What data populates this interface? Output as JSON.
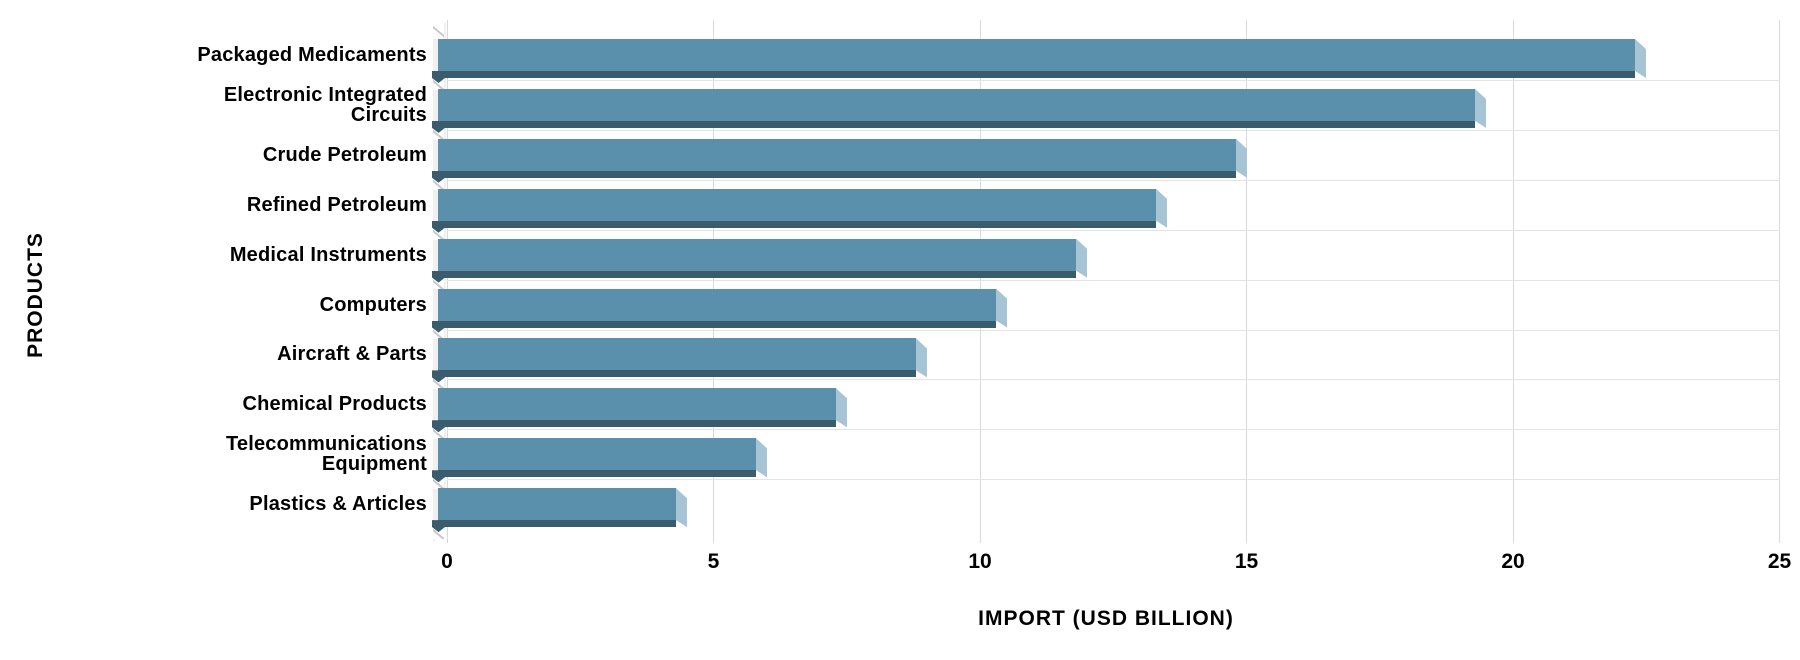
{
  "chart_data": {
    "type": "bar",
    "orientation": "horizontal",
    "style": "3d-bevel",
    "title": "",
    "xlabel": "IMPORT (USD BILLION)",
    "ylabel": "PRODUCTS",
    "xlim": [
      0,
      25
    ],
    "x_ticks": [
      0,
      5,
      10,
      15,
      20,
      25
    ],
    "x_tick_labels": [
      "0",
      "5",
      "10",
      "15",
      "20",
      "25"
    ],
    "grid": "vertical-gridlines-on, light row separators between categories",
    "legend": "none",
    "categories": [
      "Packaged Medicaments",
      "Electronic Integrated Circuits",
      "Crude Petroleum",
      "Refined Petroleum",
      "Medical Instruments",
      "Computers",
      "Aircraft & Parts",
      "Chemical Products",
      "Telecommunications Equipment",
      "Plastics & Articles"
    ],
    "category_display_lines": [
      [
        "Packaged Medicaments"
      ],
      [
        "Electronic Integrated",
        "Circuits"
      ],
      [
        "Crude Petroleum"
      ],
      [
        "Refined Petroleum"
      ],
      [
        "Medical Instruments"
      ],
      [
        "Computers"
      ],
      [
        "Aircraft & Parts"
      ],
      [
        "Chemical Products"
      ],
      [
        "Telecommunications",
        "Equipment"
      ],
      [
        "Plastics & Articles"
      ]
    ],
    "values": [
      22.5,
      19.5,
      15,
      13.5,
      12,
      10.5,
      9,
      7.5,
      6,
      4.5
    ],
    "series_name": "Import (USD Billion)",
    "colors": {
      "bar_face": "#5a90ab",
      "bar_bottom_shadow": "#3a5c6d",
      "bar_end_bevel": "#a6c4d3",
      "gridline": "#d9d9d9",
      "row_separator": "#e4e4e4",
      "side_wall": "#f0f0f0",
      "wall_notch_edge": "#c9c9c9",
      "text": "#000000",
      "background": "#ffffff"
    }
  }
}
